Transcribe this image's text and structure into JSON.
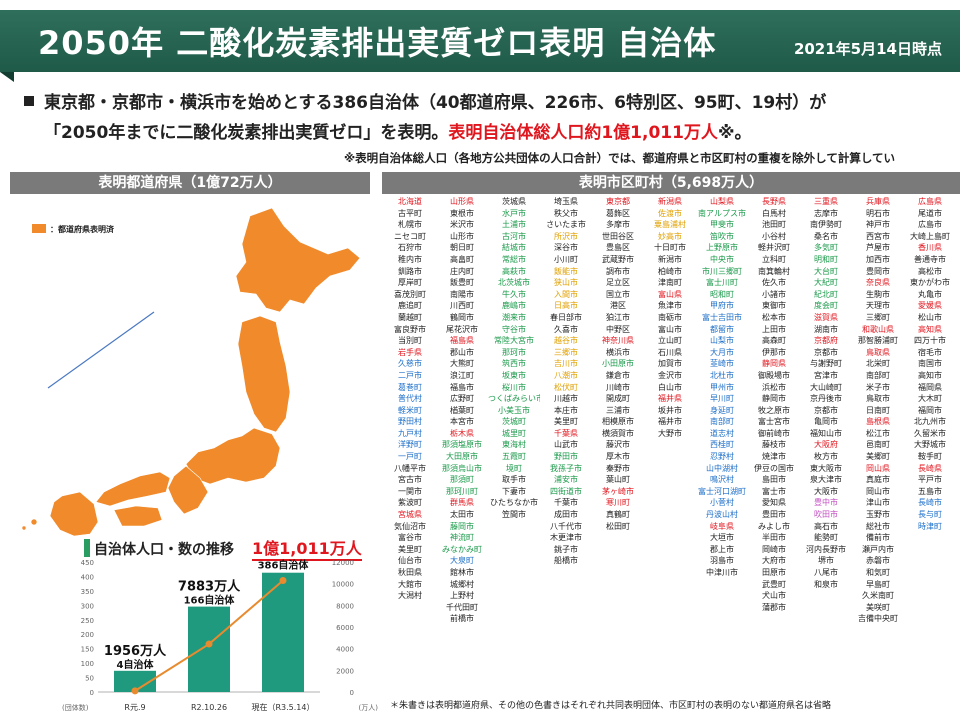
{
  "header": {
    "title": "2050年 二酸化炭素排出実質ゼロ表明 自治体",
    "date": "2021年5月14日時点"
  },
  "intro": {
    "line1": "東京都・京都市・横浜市を始めとする386自治体（40都道府県、226市、6特別区、95町、19村）が",
    "line2_a": "「2050年までに二酸化炭素排出実質ゼロ」を表明。",
    "line2_b": "表明自治体総人口約1億1,011万人",
    "line2_c": "※。",
    "note": "※表明自治体総人口（各地方公共団体の人口合計）では、都道府県と市区町村の重複を除外して計算してい"
  },
  "prefectures": {
    "title": "表明都道府県（1億72万人）",
    "legend": "：都道府県表明済"
  },
  "municipalities": {
    "title": "表明市区町村（5,698万人）",
    "footnote": "＊朱書きは表明都道府県、その他の色書きはそれぞれ共同表明団体、市区町村の表明のない都道府県名は省略"
  },
  "colors": {
    "header": "#1f5a48",
    "map": "#f08a2a",
    "bar": "#1f9a7e",
    "line": "#e88a2e",
    "accent_red": "#e0161e"
  },
  "chart_data": {
    "type": "bar",
    "title": "自治体人口・数の推移",
    "highlight": "1億1,011万人",
    "categories": [
      "R元.9",
      "R2.10.26",
      "現在（R3.5.14）"
    ],
    "series": [
      {
        "name": "",
        "values": [
          1956,
          7883,
          11011
        ],
        "labels": [
          "1956万人",
          "7883万人",
          ""
        ]
      },
      {
        "name": "",
        "values": [
          4,
          166,
          386
        ],
        "labels": [
          "4自治体",
          "166自治体",
          "386自治体"
        ]
      }
    ],
    "y_left_ticks": [
      "0",
      "50",
      "100",
      "150",
      "200",
      "250",
      "300",
      "350",
      "400",
      "450"
    ],
    "y_right_ticks": [
      "0",
      "2000",
      "4000",
      "6000",
      "8000",
      "10000",
      "12000"
    ],
    "y_left_unit": "(団体数)",
    "y_right_unit": "(万人)",
    "ylim_left": [
      0,
      450
    ],
    "ylim_right": [
      0,
      12000
    ]
  },
  "muni_columns": [
    [
      [
        "北海道",
        "hdr"
      ],
      [
        "古平町",
        "k"
      ],
      [
        "札幌市",
        "k"
      ],
      [
        "ニセコ町",
        "k"
      ],
      [
        "石狩市",
        "k"
      ],
      [
        "稚内市",
        "k"
      ],
      [
        "釧路市",
        "k"
      ],
      [
        "厚岸町",
        "k"
      ],
      [
        "喜茂別町",
        "k"
      ],
      [
        "鹿追町",
        "k"
      ],
      [
        "蘭越町",
        "k"
      ],
      [
        "富良野市",
        "k"
      ],
      [
        "当別町",
        "k"
      ],
      [
        "岩手県",
        "hdr"
      ],
      [
        "久慈市",
        "b"
      ],
      [
        "二戸市",
        "b"
      ],
      [
        "葛巻町",
        "b"
      ],
      [
        "普代村",
        "b"
      ],
      [
        "軽米町",
        "b"
      ],
      [
        "野田村",
        "b"
      ],
      [
        "九戸村",
        "b"
      ],
      [
        "洋野町",
        "b"
      ],
      [
        "一戸町",
        "b"
      ],
      [
        "八幡平市",
        "k"
      ],
      [
        "宮古市",
        "k"
      ],
      [
        "一関市",
        "k"
      ],
      [
        "紫波町",
        "k"
      ],
      [
        "宮城県",
        "hdr"
      ],
      [
        "気仙沼市",
        "k"
      ],
      [
        "富谷市",
        "k"
      ],
      [
        "美里町",
        "k"
      ],
      [
        "仙台市",
        "k"
      ],
      [
        "秋田県",
        "k"
      ],
      [
        "大館市",
        "k"
      ],
      [
        "大潟村",
        "k"
      ]
    ],
    [
      [
        "山形県",
        "hdr"
      ],
      [
        "東根市",
        "k"
      ],
      [
        "米沢市",
        "k"
      ],
      [
        "山形市",
        "k"
      ],
      [
        "朝日町",
        "k"
      ],
      [
        "高畠町",
        "k"
      ],
      [
        "庄内町",
        "k"
      ],
      [
        "飯豊町",
        "k"
      ],
      [
        "南陽市",
        "k"
      ],
      [
        "川西町",
        "k"
      ],
      [
        "鶴岡市",
        "k"
      ],
      [
        "尾花沢市",
        "k"
      ],
      [
        "福島県",
        "hdr"
      ],
      [
        "郡山市",
        "k"
      ],
      [
        "大熊町",
        "k"
      ],
      [
        "浪江町",
        "k"
      ],
      [
        "福島市",
        "k"
      ],
      [
        "広野町",
        "k"
      ],
      [
        "楢葉町",
        "k"
      ],
      [
        "本宮市",
        "k"
      ],
      [
        "栃木県",
        "hdr"
      ],
      [
        "那須塩原市",
        "g"
      ],
      [
        "大田原市",
        "g"
      ],
      [
        "那須烏山市",
        "g"
      ],
      [
        "那須町",
        "g"
      ],
      [
        "那珂川町",
        "g"
      ],
      [
        "群馬県",
        "hdr"
      ],
      [
        "太田市",
        "k"
      ],
      [
        "藤岡市",
        "g"
      ],
      [
        "神流町",
        "g"
      ],
      [
        "みなかみ町",
        "g"
      ],
      [
        "大泉町",
        "b"
      ],
      [
        "館林市",
        "k"
      ],
      [
        "城郷村",
        "k"
      ],
      [
        "上野村",
        "k"
      ],
      [
        "千代田町",
        "k"
      ],
      [
        "前橋市",
        "k"
      ]
    ],
    [
      [
        "茨城県",
        "k"
      ],
      [
        "水戸市",
        "g"
      ],
      [
        "土浦市",
        "g"
      ],
      [
        "古河市",
        "g"
      ],
      [
        "結城市",
        "g"
      ],
      [
        "常総市",
        "g"
      ],
      [
        "高萩市",
        "g"
      ],
      [
        "北茨城市",
        "g"
      ],
      [
        "牛久市",
        "g"
      ],
      [
        "鹿嶋市",
        "g"
      ],
      [
        "潮来市",
        "g"
      ],
      [
        "守谷市",
        "g"
      ],
      [
        "常陸大宮市",
        "g"
      ],
      [
        "那珂市",
        "g"
      ],
      [
        "筑西市",
        "g"
      ],
      [
        "坂東市",
        "g"
      ],
      [
        "桜川市",
        "g"
      ],
      [
        "つくばみらい市",
        "g"
      ],
      [
        "小美玉市",
        "g"
      ],
      [
        "茨城町",
        "g"
      ],
      [
        "城里町",
        "g"
      ],
      [
        "東海村",
        "g"
      ],
      [
        "五霞町",
        "g"
      ],
      [
        "境町",
        "g"
      ],
      [
        "取手市",
        "k"
      ],
      [
        "下妻市",
        "k"
      ],
      [
        "ひたちなか市",
        "k"
      ],
      [
        "笠間市",
        "k"
      ]
    ],
    [
      [
        "埼玉県",
        "k"
      ],
      [
        "秩父市",
        "k"
      ],
      [
        "さいたま市",
        "k"
      ],
      [
        "所沢市",
        "o"
      ],
      [
        "深谷市",
        "k"
      ],
      [
        "小川町",
        "k"
      ],
      [
        "飯能市",
        "o"
      ],
      [
        "狭山市",
        "o"
      ],
      [
        "入間市",
        "o"
      ],
      [
        "日高市",
        "o"
      ],
      [
        "春日部市",
        "k"
      ],
      [
        "久喜市",
        "k"
      ],
      [
        "越谷市",
        "o"
      ],
      [
        "三郷市",
        "o"
      ],
      [
        "吉川市",
        "o"
      ],
      [
        "八潮市",
        "o"
      ],
      [
        "松伏町",
        "o"
      ],
      [
        "川越市",
        "k"
      ],
      [
        "本庄市",
        "k"
      ],
      [
        "美里町",
        "k"
      ],
      [
        "千葉県",
        "hdr"
      ],
      [
        "山武市",
        "k"
      ],
      [
        "野田市",
        "g"
      ],
      [
        "我孫子市",
        "g"
      ],
      [
        "浦安市",
        "g"
      ],
      [
        "四街道市",
        "g"
      ],
      [
        "千葉市",
        "k"
      ],
      [
        "成田市",
        "k"
      ],
      [
        "八千代市",
        "k"
      ],
      [
        "木更津市",
        "k"
      ],
      [
        "銚子市",
        "k"
      ],
      [
        "船橋市",
        "k"
      ]
    ],
    [
      [
        "東京都",
        "hdr"
      ],
      [
        "葛飾区",
        "k"
      ],
      [
        "多摩市",
        "k"
      ],
      [
        "世田谷区",
        "k"
      ],
      [
        "豊島区",
        "k"
      ],
      [
        "武蔵野市",
        "k"
      ],
      [
        "調布市",
        "k"
      ],
      [
        "足立区",
        "k"
      ],
      [
        "国立市",
        "k"
      ],
      [
        "港区",
        "k"
      ],
      [
        "狛江市",
        "k"
      ],
      [
        "中野区",
        "k"
      ],
      [
        "神奈川県",
        "hdr"
      ],
      [
        "横浜市",
        "k"
      ],
      [
        "小田原市",
        "g"
      ],
      [
        "鎌倉市",
        "k"
      ],
      [
        "川崎市",
        "k"
      ],
      [
        "開成町",
        "k"
      ],
      [
        "三浦市",
        "k"
      ],
      [
        "相模原市",
        "k"
      ],
      [
        "横須賀市",
        "k"
      ],
      [
        "藤沢市",
        "k"
      ],
      [
        "厚木市",
        "k"
      ],
      [
        "秦野市",
        "k"
      ],
      [
        "葉山町",
        "k"
      ],
      [
        "茅ヶ崎市",
        "r"
      ],
      [
        "寒川町",
        "r"
      ],
      [
        "真鶴町",
        "k"
      ],
      [
        "松田町",
        "k"
      ]
    ],
    [
      [
        "新潟県",
        "hdr"
      ],
      [
        "佐渡市",
        "o"
      ],
      [
        "粟島浦村",
        "o"
      ],
      [
        "妙高市",
        "o"
      ],
      [
        "十日町市",
        "k"
      ],
      [
        "新潟市",
        "k"
      ],
      [
        "柏崎市",
        "k"
      ],
      [
        "津南町",
        "k"
      ],
      [
        "富山県",
        "hdr"
      ],
      [
        "魚津市",
        "k"
      ],
      [
        "南砺市",
        "k"
      ],
      [
        "富山市",
        "k"
      ],
      [
        "立山町",
        "k"
      ],
      [
        "石川県",
        "k"
      ],
      [
        "加賀市",
        "k"
      ],
      [
        "金沢市",
        "k"
      ],
      [
        "白山市",
        "k"
      ],
      [
        "福井県",
        "hdr"
      ],
      [
        "坂井市",
        "k"
      ],
      [
        "福井市",
        "k"
      ],
      [
        "大野市",
        "k"
      ]
    ],
    [
      [
        "山梨県",
        "hdr"
      ],
      [
        "南アルプス市",
        "g"
      ],
      [
        "甲斐市",
        "g"
      ],
      [
        "笛吹市",
        "g"
      ],
      [
        "上野原市",
        "g"
      ],
      [
        "中央市",
        "g"
      ],
      [
        "市川三郷町",
        "g"
      ],
      [
        "富士川町",
        "g"
      ],
      [
        "昭和町",
        "g"
      ],
      [
        "甲府市",
        "b"
      ],
      [
        "富士吉田市",
        "b"
      ],
      [
        "都留市",
        "b"
      ],
      [
        "山梨市",
        "b"
      ],
      [
        "大月市",
        "b"
      ],
      [
        "韮崎市",
        "b"
      ],
      [
        "北杜市",
        "b"
      ],
      [
        "甲州市",
        "b"
      ],
      [
        "早川町",
        "b"
      ],
      [
        "身延町",
        "b"
      ],
      [
        "南部町",
        "b"
      ],
      [
        "道志村",
        "b"
      ],
      [
        "西桂町",
        "b"
      ],
      [
        "忍野村",
        "b"
      ],
      [
        "山中湖村",
        "b"
      ],
      [
        "鳴沢村",
        "b"
      ],
      [
        "富士河口湖町",
        "b"
      ],
      [
        "小菅村",
        "b"
      ],
      [
        "丹波山村",
        "b"
      ],
      [
        "岐阜県",
        "hdr"
      ],
      [
        "大垣市",
        "k"
      ],
      [
        "郡上市",
        "k"
      ],
      [
        "羽島市",
        "k"
      ],
      [
        "中津川市",
        "k"
      ]
    ],
    [
      [
        "長野県",
        "hdr"
      ],
      [
        "白馬村",
        "k"
      ],
      [
        "池田町",
        "k"
      ],
      [
        "小谷村",
        "k"
      ],
      [
        "軽井沢町",
        "k"
      ],
      [
        "立科町",
        "k"
      ],
      [
        "南箕輪村",
        "k"
      ],
      [
        "佐久市",
        "k"
      ],
      [
        "小諸市",
        "k"
      ],
      [
        "東御市",
        "k"
      ],
      [
        "松本市",
        "k"
      ],
      [
        "上田市",
        "k"
      ],
      [
        "高森町",
        "k"
      ],
      [
        "伊那市",
        "k"
      ],
      [
        "静岡県",
        "hdr"
      ],
      [
        "御殿場市",
        "k"
      ],
      [
        "浜松市",
        "k"
      ],
      [
        "静岡市",
        "k"
      ],
      [
        "牧之原市",
        "k"
      ],
      [
        "富士宮市",
        "k"
      ],
      [
        "御前崎市",
        "k"
      ],
      [
        "藤枝市",
        "k"
      ],
      [
        "焼津市",
        "k"
      ],
      [
        "伊豆の国市",
        "k"
      ],
      [
        "島田市",
        "k"
      ],
      [
        "富士市",
        "k"
      ],
      [
        "愛知県",
        "k"
      ],
      [
        "豊田市",
        "k"
      ],
      [
        "みよし市",
        "k"
      ],
      [
        "半田市",
        "k"
      ],
      [
        "岡崎市",
        "k"
      ],
      [
        "大府市",
        "k"
      ],
      [
        "田原市",
        "k"
      ],
      [
        "武豊町",
        "k"
      ],
      [
        "犬山市",
        "k"
      ],
      [
        "蒲郡市",
        "k"
      ]
    ],
    [
      [
        "三重県",
        "hdr"
      ],
      [
        "志摩市",
        "k"
      ],
      [
        "南伊勢町",
        "k"
      ],
      [
        "桑名市",
        "k"
      ],
      [
        "多気町",
        "g"
      ],
      [
        "明和町",
        "g"
      ],
      [
        "大台町",
        "g"
      ],
      [
        "大紀町",
        "g"
      ],
      [
        "紀北町",
        "g"
      ],
      [
        "度会町",
        "g"
      ],
      [
        "滋賀県",
        "hdr"
      ],
      [
        "湖南市",
        "k"
      ],
      [
        "京都府",
        "hdr"
      ],
      [
        "京都市",
        "k"
      ],
      [
        "与謝野町",
        "k"
      ],
      [
        "宮津市",
        "k"
      ],
      [
        "大山崎町",
        "k"
      ],
      [
        "京丹後市",
        "k"
      ],
      [
        "京都市",
        "k"
      ],
      [
        "亀岡市",
        "k"
      ],
      [
        "福知山市",
        "k"
      ],
      [
        "大阪府",
        "hdr"
      ],
      [
        "枚方市",
        "k"
      ],
      [
        "東大阪市",
        "k"
      ],
      [
        "泉大津市",
        "k"
      ],
      [
        "大阪市",
        "k"
      ],
      [
        "豊中市",
        "p"
      ],
      [
        "吹田市",
        "p"
      ],
      [
        "高石市",
        "k"
      ],
      [
        "能勢町",
        "k"
      ],
      [
        "河内長野市",
        "k"
      ],
      [
        "堺市",
        "k"
      ],
      [
        "八尾市",
        "k"
      ],
      [
        "和泉市",
        "k"
      ]
    ],
    [
      [
        "兵庫県",
        "hdr"
      ],
      [
        "明石市",
        "k"
      ],
      [
        "神戸市",
        "k"
      ],
      [
        "西宮市",
        "k"
      ],
      [
        "芦屋市",
        "k"
      ],
      [
        "加西市",
        "k"
      ],
      [
        "豊岡市",
        "k"
      ],
      [
        "奈良県",
        "hdr"
      ],
      [
        "生駒市",
        "k"
      ],
      [
        "天理市",
        "k"
      ],
      [
        "三郷町",
        "k"
      ],
      [
        "和歌山県",
        "hdr"
      ],
      [
        "那智勝浦町",
        "k"
      ],
      [
        "鳥取県",
        "hdr"
      ],
      [
        "北栄町",
        "k"
      ],
      [
        "南部町",
        "k"
      ],
      [
        "米子市",
        "k"
      ],
      [
        "鳥取市",
        "k"
      ],
      [
        "日南町",
        "k"
      ],
      [
        "島根県",
        "hdr"
      ],
      [
        "松江市",
        "k"
      ],
      [
        "邑南町",
        "k"
      ],
      [
        "美郷町",
        "k"
      ],
      [
        "岡山県",
        "hdr"
      ],
      [
        "真庭市",
        "k"
      ],
      [
        "岡山市",
        "k"
      ],
      [
        "津山市",
        "k"
      ],
      [
        "玉野市",
        "k"
      ],
      [
        "総社市",
        "k"
      ],
      [
        "備前市",
        "k"
      ],
      [
        "瀬戸内市",
        "k"
      ],
      [
        "赤磐市",
        "k"
      ],
      [
        "和気町",
        "k"
      ],
      [
        "早島町",
        "k"
      ],
      [
        "久米南町",
        "k"
      ],
      [
        "美咲町",
        "k"
      ],
      [
        "吉備中央町",
        "k"
      ]
    ],
    [
      [
        "広島県",
        "hdr"
      ],
      [
        "尾道市",
        "k"
      ],
      [
        "広島市",
        "k"
      ],
      [
        "大崎上島町",
        "k"
      ],
      [
        "香川県",
        "hdr"
      ],
      [
        "善通寺市",
        "k"
      ],
      [
        "高松市",
        "k"
      ],
      [
        "東かがわ市",
        "k"
      ],
      [
        "丸亀市",
        "k"
      ],
      [
        "愛媛県",
        "hdr"
      ],
      [
        "松山市",
        "k"
      ],
      [
        "高知県",
        "hdr"
      ],
      [
        "四万十市",
        "k"
      ],
      [
        "宿毛市",
        "k"
      ],
      [
        "南国市",
        "k"
      ],
      [
        "高知市",
        "k"
      ],
      [
        "福岡県",
        "k"
      ],
      [
        "大木町",
        "k"
      ],
      [
        "福岡市",
        "k"
      ],
      [
        "北九州市",
        "k"
      ],
      [
        "久留米市",
        "k"
      ],
      [
        "大野城市",
        "k"
      ],
      [
        "鞍手町",
        "k"
      ],
      [
        "長崎県",
        "hdr"
      ],
      [
        "平戸市",
        "k"
      ],
      [
        "五島市",
        "k"
      ],
      [
        "長崎市",
        "b"
      ],
      [
        "長与町",
        "b"
      ],
      [
        "時津町",
        "b"
      ]
    ]
  ]
}
